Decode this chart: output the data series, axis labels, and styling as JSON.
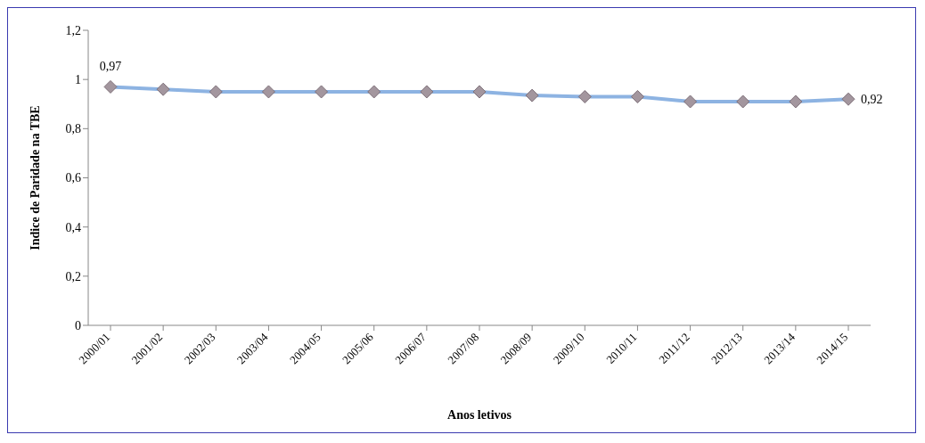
{
  "chart_data": {
    "type": "line",
    "xlabel": "Anos letivos",
    "ylabel": "Indice de Paridade na TBE",
    "categories": [
      "2000/01",
      "2001/02",
      "2002/03",
      "2003/04",
      "2004/05",
      "2005/06",
      "2006/07",
      "2007/08",
      "2008/09",
      "2009/10",
      "2010/11",
      "2011/12",
      "2012/13",
      "2013/14",
      "2014/15"
    ],
    "series": [
      {
        "color": "#8db3e2",
        "values": [
          0.97,
          0.96,
          0.95,
          0.95,
          0.95,
          0.95,
          0.95,
          0.95,
          0.935,
          0.93,
          0.93,
          0.91,
          0.91,
          0.91,
          0.92
        ],
        "value_labels": [
          "0,97",
          null,
          null,
          null,
          null,
          null,
          null,
          null,
          null,
          null,
          null,
          null,
          null,
          null,
          "0,92"
        ]
      }
    ],
    "ylim": [
      0,
      1.2
    ],
    "yticks": [
      0,
      {
        "value": 0.2,
        "label": "0,2"
      },
      {
        "value": 0.4,
        "label": "0,4"
      },
      {
        "value": 0.6,
        "label": "0,6"
      },
      {
        "value": 0.8,
        "label": "0,8"
      },
      1,
      {
        "value": 1.2,
        "label": "1,2"
      }
    ],
    "grid": false,
    "legend": false,
    "marker": "diamond",
    "line_style": "solid"
  }
}
